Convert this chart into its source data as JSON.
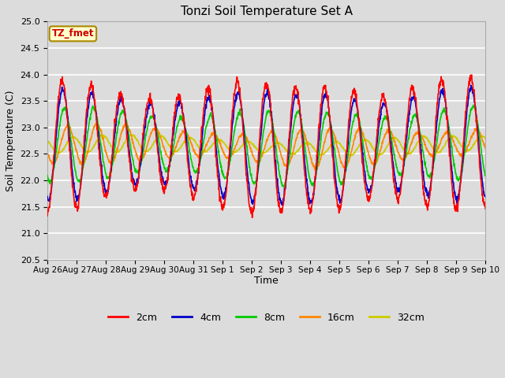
{
  "title": "Tonzi Soil Temperature Set A",
  "xlabel": "Time",
  "ylabel": "Soil Temperature (C)",
  "annotation": "TZ_fmet",
  "ylim": [
    20.5,
    25.0
  ],
  "yticks": [
    20.5,
    21.0,
    21.5,
    22.0,
    22.5,
    23.0,
    23.5,
    24.0,
    24.5,
    25.0
  ],
  "series_colors": {
    "2cm": "#ff0000",
    "4cm": "#0000cc",
    "8cm": "#00cc00",
    "16cm": "#ff8800",
    "32cm": "#cccc00"
  },
  "xtick_labels": [
    "Aug 26",
    "Aug 27",
    "Aug 28",
    "Aug 29",
    "Aug 30",
    "Aug 31",
    "Sep 1",
    "Sep 2",
    "Sep 3",
    "Sep 4",
    "Sep 5",
    "Sep 6",
    "Sep 7",
    "Sep 8",
    "Sep 9",
    "Sep 10"
  ],
  "background_color": "#dcdcdc",
  "plot_bg_color": "#dcdcdc",
  "grid_color": "#ffffff",
  "annotation_bg": "#ffffcc",
  "annotation_border": "#aa8800",
  "annotation_text_color": "#cc0000",
  "n_days": 15,
  "base_mean": 22.65,
  "phase_2cm": 0.0,
  "phase_4cm": 0.15,
  "phase_8cm": 0.5,
  "phase_16cm": 1.2,
  "phase_32cm": 2.4,
  "lw": 1.2
}
